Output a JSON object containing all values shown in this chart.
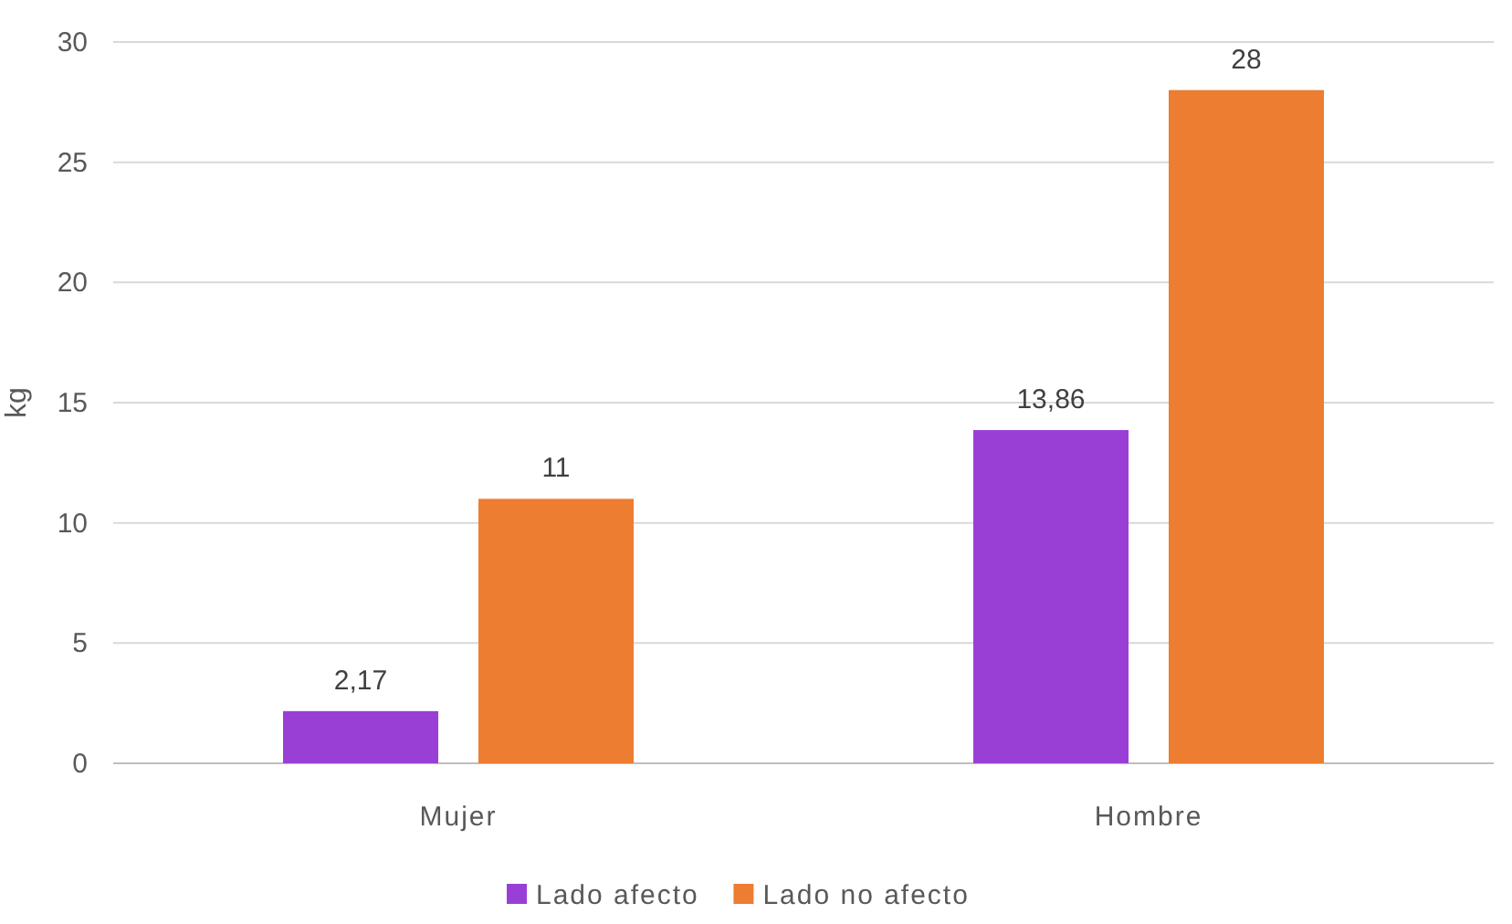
{
  "chart_data": {
    "type": "bar",
    "ylabel": "kg",
    "categories": [
      "Mujer",
      "Hombre"
    ],
    "series": [
      {
        "name": "Lado afecto",
        "color": "#9a3fd6",
        "values": [
          2.17,
          13.86
        ],
        "value_labels": [
          "2,17",
          "13,86"
        ]
      },
      {
        "name": "Lado no afecto",
        "color": "#ed7d31",
        "values": [
          11,
          28
        ],
        "value_labels": [
          "11",
          "28"
        ]
      }
    ],
    "ylim": [
      0,
      30
    ],
    "yticks": [
      0,
      5,
      10,
      15,
      20,
      25,
      30
    ],
    "grid": "y",
    "legend": "bottom"
  }
}
